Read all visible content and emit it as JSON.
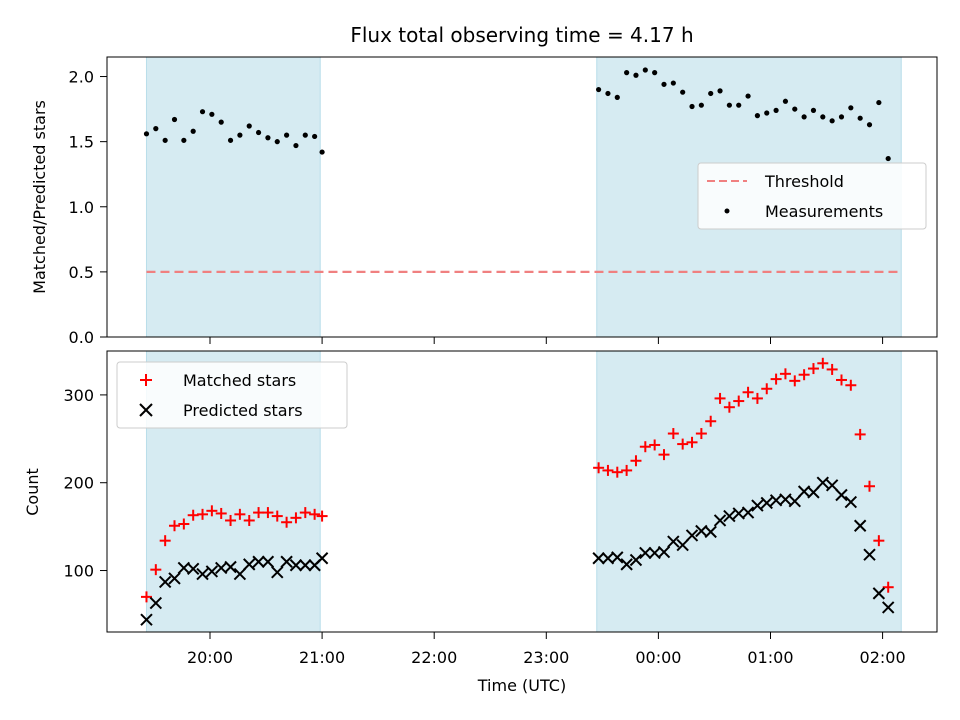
{
  "chart_data": [
    {
      "type": "scatter",
      "title": "Flux total observing time = 4.17 h",
      "ylabel": "Matched/Predicted stars",
      "ylim": [
        0,
        2.15
      ],
      "y_ticks": [
        "0.0",
        "0.5",
        "1.0",
        "1.5",
        "2.0"
      ],
      "grid": false,
      "legend_position": "center-right",
      "threshold": {
        "name": "Threshold",
        "value": 0.5,
        "color": "#f08080",
        "x_range": [
          "19:26",
          "02:10"
        ]
      },
      "shaded_regions": [
        {
          "start": "19:26",
          "end": "20:59",
          "color": "#add8e6"
        },
        {
          "start": "23:27",
          "end": "02:10",
          "color": "#add8e6"
        }
      ],
      "series": [
        {
          "name": "Measurements",
          "marker": "dot",
          "color": "#000000",
          "points": [
            [
              "19:26",
              1.56
            ],
            [
              "19:31",
              1.6
            ],
            [
              "19:36",
              1.51
            ],
            [
              "19:41",
              1.67
            ],
            [
              "19:46",
              1.51
            ],
            [
              "19:51",
              1.58
            ],
            [
              "19:56",
              1.73
            ],
            [
              "20:01",
              1.71
            ],
            [
              "20:06",
              1.65
            ],
            [
              "20:11",
              1.51
            ],
            [
              "20:16",
              1.55
            ],
            [
              "20:21",
              1.62
            ],
            [
              "20:26",
              1.57
            ],
            [
              "20:31",
              1.53
            ],
            [
              "20:36",
              1.5
            ],
            [
              "20:41",
              1.55
            ],
            [
              "20:46",
              1.47
            ],
            [
              "20:51",
              1.55
            ],
            [
              "20:56",
              1.54
            ],
            [
              "21:00",
              1.42
            ],
            [
              "23:28",
              1.9
            ],
            [
              "23:33",
              1.87
            ],
            [
              "23:38",
              1.84
            ],
            [
              "23:43",
              2.03
            ],
            [
              "23:48",
              2.01
            ],
            [
              "23:53",
              2.05
            ],
            [
              "23:58",
              2.03
            ],
            [
              "00:03",
              1.94
            ],
            [
              "00:08",
              1.95
            ],
            [
              "00:13",
              1.88
            ],
            [
              "00:18",
              1.77
            ],
            [
              "00:23",
              1.78
            ],
            [
              "00:28",
              1.87
            ],
            [
              "00:33",
              1.89
            ],
            [
              "00:38",
              1.78
            ],
            [
              "00:43",
              1.78
            ],
            [
              "00:48",
              1.85
            ],
            [
              "00:53",
              1.7
            ],
            [
              "00:58",
              1.72
            ],
            [
              "01:03",
              1.74
            ],
            [
              "01:08",
              1.81
            ],
            [
              "01:13",
              1.75
            ],
            [
              "01:18",
              1.69
            ],
            [
              "01:23",
              1.74
            ],
            [
              "01:28",
              1.69
            ],
            [
              "01:33",
              1.66
            ],
            [
              "01:38",
              1.69
            ],
            [
              "01:43",
              1.76
            ],
            [
              "01:48",
              1.68
            ],
            [
              "01:53",
              1.63
            ],
            [
              "01:58",
              1.8
            ],
            [
              "02:03",
              1.37
            ]
          ]
        }
      ]
    },
    {
      "type": "scatter",
      "xlabel": "Time (UTC)",
      "ylabel": "Count",
      "ylim": [
        30,
        350
      ],
      "y_ticks": [
        "100",
        "200",
        "300"
      ],
      "x_ticks": [
        "20:00",
        "21:00",
        "22:00",
        "23:00",
        "00:00",
        "01:00",
        "02:00"
      ],
      "grid": false,
      "legend_position": "top-left",
      "shaded_regions": [
        {
          "start": "19:26",
          "end": "20:59",
          "color": "#add8e6"
        },
        {
          "start": "23:27",
          "end": "02:10",
          "color": "#add8e6"
        }
      ],
      "series": [
        {
          "name": "Matched stars",
          "marker": "plus",
          "color": "#ff0000",
          "points": [
            [
              "19:26",
              70
            ],
            [
              "19:31",
              101
            ],
            [
              "19:36",
              134
            ],
            [
              "19:41",
              151
            ],
            [
              "19:46",
              153
            ],
            [
              "19:51",
              163
            ],
            [
              "19:56",
              164
            ],
            [
              "20:01",
              168
            ],
            [
              "20:06",
              165
            ],
            [
              "20:11",
              157
            ],
            [
              "20:16",
              164
            ],
            [
              "20:21",
              157
            ],
            [
              "20:26",
              166
            ],
            [
              "20:31",
              166
            ],
            [
              "20:36",
              162
            ],
            [
              "20:41",
              155
            ],
            [
              "20:46",
              160
            ],
            [
              "20:51",
              166
            ],
            [
              "20:56",
              164
            ],
            [
              "21:00",
              162
            ],
            [
              "23:28",
              217
            ],
            [
              "23:33",
              214
            ],
            [
              "23:38",
              212
            ],
            [
              "23:43",
              214
            ],
            [
              "23:48",
              225
            ],
            [
              "23:53",
              241
            ],
            [
              "23:58",
              243
            ],
            [
              "00:03",
              232
            ],
            [
              "00:08",
              256
            ],
            [
              "00:13",
              244
            ],
            [
              "00:18",
              246
            ],
            [
              "00:23",
              256
            ],
            [
              "00:28",
              270
            ],
            [
              "00:33",
              296
            ],
            [
              "00:38",
              286
            ],
            [
              "00:43",
              293
            ],
            [
              "00:48",
              303
            ],
            [
              "00:53",
              296
            ],
            [
              "00:58",
              307
            ],
            [
              "01:03",
              318
            ],
            [
              "01:08",
              324
            ],
            [
              "01:13",
              316
            ],
            [
              "01:18",
              323
            ],
            [
              "01:23",
              330
            ],
            [
              "01:28",
              336
            ],
            [
              "01:33",
              329
            ],
            [
              "01:38",
              317
            ],
            [
              "01:43",
              311
            ],
            [
              "01:48",
              255
            ],
            [
              "01:53",
              196
            ],
            [
              "01:58",
              134
            ],
            [
              "02:03",
              81
            ]
          ]
        },
        {
          "name": "Predicted stars",
          "marker": "x",
          "color": "#000000",
          "points": [
            [
              "19:26",
              44
            ],
            [
              "19:31",
              63
            ],
            [
              "19:36",
              87
            ],
            [
              "19:41",
              91
            ],
            [
              "19:46",
              103
            ],
            [
              "19:51",
              102
            ],
            [
              "19:56",
              96
            ],
            [
              "20:01",
              99
            ],
            [
              "20:06",
              103
            ],
            [
              "20:11",
              104
            ],
            [
              "20:16",
              96
            ],
            [
              "20:21",
              107
            ],
            [
              "20:26",
              110
            ],
            [
              "20:31",
              110
            ],
            [
              "20:36",
              98
            ],
            [
              "20:41",
              110
            ],
            [
              "20:46",
              106
            ],
            [
              "20:51",
              106
            ],
            [
              "20:56",
              106
            ],
            [
              "21:00",
              114
            ],
            [
              "23:28",
              114
            ],
            [
              "23:33",
              114
            ],
            [
              "23:38",
              115
            ],
            [
              "23:43",
              107
            ],
            [
              "23:48",
              112
            ],
            [
              "23:53",
              120
            ],
            [
              "23:58",
              120
            ],
            [
              "00:03",
              121
            ],
            [
              "00:08",
              133
            ],
            [
              "00:13",
              129
            ],
            [
              "00:18",
              140
            ],
            [
              "00:23",
              145
            ],
            [
              "00:28",
              144
            ],
            [
              "00:33",
              157
            ],
            [
              "00:38",
              162
            ],
            [
              "00:43",
              165
            ],
            [
              "00:48",
              166
            ],
            [
              "00:53",
              174
            ],
            [
              "00:58",
              177
            ],
            [
              "01:03",
              180
            ],
            [
              "01:08",
              181
            ],
            [
              "01:13",
              179
            ],
            [
              "01:18",
              190
            ],
            [
              "01:23",
              189
            ],
            [
              "01:28",
              200
            ],
            [
              "01:33",
              197
            ],
            [
              "01:38",
              186
            ],
            [
              "01:43",
              178
            ],
            [
              "01:48",
              151
            ],
            [
              "01:53",
              118
            ],
            [
              "01:58",
              74
            ],
            [
              "02:03",
              58
            ]
          ]
        }
      ]
    }
  ]
}
